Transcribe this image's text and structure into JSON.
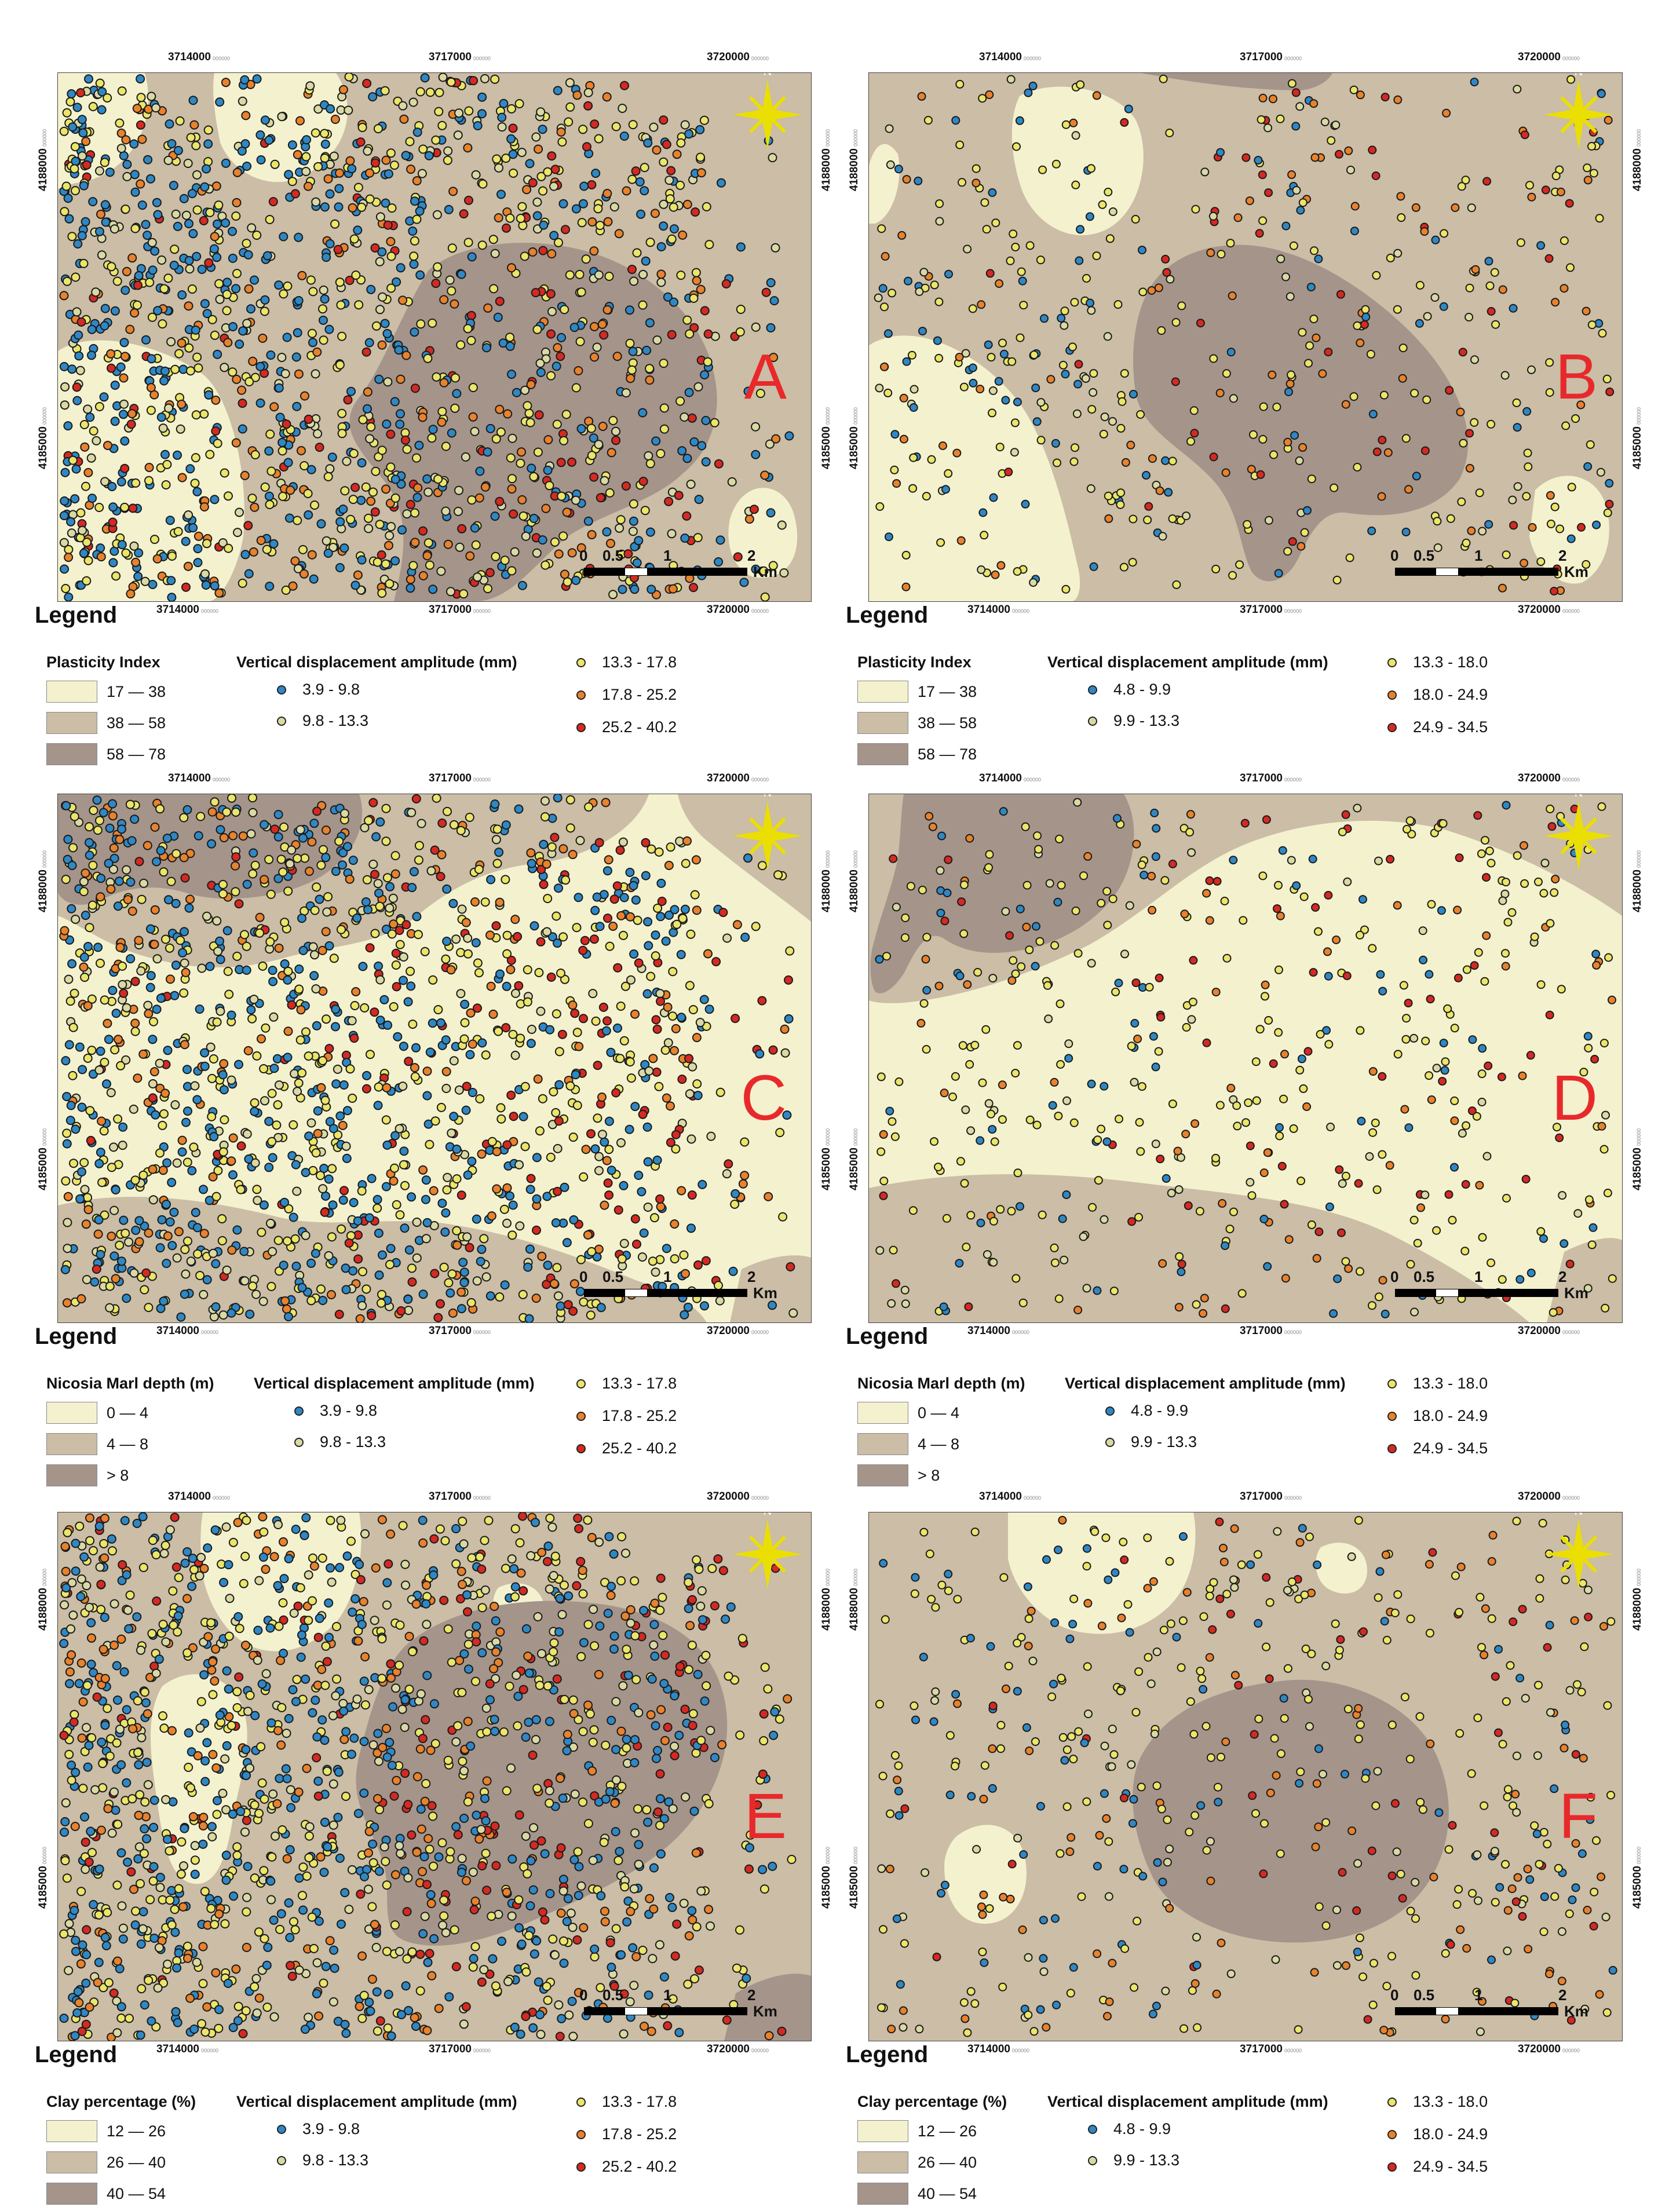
{
  "colors": {
    "low": "#f4f1cf",
    "mid": "#cbbda6",
    "high": "#a5948a",
    "blue": "#2f88c4",
    "yellow": "#ebe56a",
    "orange": "#e8822d",
    "red": "#d42a22",
    "pale": "#dad9a4",
    "north": "#eadf00",
    "letter": "#e8292b"
  },
  "coords": {
    "x_ticks": [
      "3714000",
      "3717000",
      "3720000"
    ],
    "y_ticks": [
      "4188000",
      "4185000"
    ]
  },
  "scale": {
    "labels": [
      "0",
      "0.5",
      "1",
      "2"
    ],
    "unit": "Km"
  },
  "legend_title": "Legend",
  "vda_title": "Vertical displacement amplitude (mm)",
  "panels": [
    {
      "id": "A",
      "letter": "A",
      "var_title": "Plasticity Index",
      "classes": [
        "17 — 38",
        "38 — 58",
        "58 — 78"
      ],
      "vda": [
        "3.9 - 9.8",
        "9.8 - 13.3",
        "13.3 - 17.8",
        "17.8 - 25.2",
        "25.2 - 40.2"
      ],
      "dense": true
    },
    {
      "id": "B",
      "letter": "B",
      "var_title": "Plasticity Index",
      "classes": [
        "17 — 38",
        "38 — 58",
        "58 — 78"
      ],
      "vda": [
        "4.8 - 9.9",
        "9.9 - 13.3",
        "13.3 - 18.0",
        "18.0 - 24.9",
        "24.9 - 34.5"
      ],
      "dense": false
    },
    {
      "id": "C",
      "letter": "C",
      "var_title": "Nicosia Marl depth (m)",
      "classes": [
        "0 — 4",
        "4 — 8",
        "> 8"
      ],
      "vda": [
        "3.9 - 9.8",
        "9.8 - 13.3",
        "13.3 - 17.8",
        "17.8 - 25.2",
        "25.2 - 40.2"
      ],
      "dense": true
    },
    {
      "id": "D",
      "letter": "D",
      "var_title": "Nicosia Marl depth (m)",
      "classes": [
        "0 — 4",
        "4 — 8",
        "> 8"
      ],
      "vda": [
        "4.8 - 9.9",
        "9.9 - 13.3",
        "13.3 - 18.0",
        "18.0 - 24.9",
        "24.9 - 34.5"
      ],
      "dense": false
    },
    {
      "id": "E",
      "letter": "E",
      "var_title": "Clay percentage (%)",
      "classes": [
        "12 — 26",
        "26 — 40",
        "40 — 54"
      ],
      "vda": [
        "3.9 - 9.8",
        "9.8 - 13.3",
        "13.3 - 17.8",
        "17.8 - 25.2",
        "25.2 - 40.2"
      ],
      "dense": true
    },
    {
      "id": "F",
      "letter": "F",
      "var_title": "Clay percentage (%)",
      "classes": [
        "12 — 26",
        "26 — 40",
        "40 — 54"
      ],
      "vda": [
        "4.8 - 9.9",
        "9.9 - 13.3",
        "13.3 - 18.0",
        "18.0 - 24.9",
        "24.9 - 34.5"
      ],
      "dense": false
    }
  ]
}
